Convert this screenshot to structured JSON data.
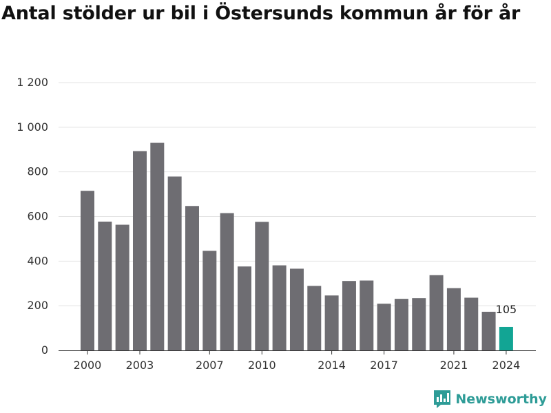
{
  "title": "Antal stölder ur bil i Östersunds kommun år för år",
  "brand": {
    "name": "Newsworthy",
    "icon": "newsworthy-logo-icon",
    "color": "#2e9c97"
  },
  "chart_data": {
    "type": "bar",
    "title": "Antal stölder ur bil i Östersunds kommun år för år",
    "categories": [
      "2000",
      "2001",
      "2002",
      "2003",
      "2004",
      "2005",
      "2006",
      "2007",
      "2008",
      "2009",
      "2010",
      "2011",
      "2012",
      "2013",
      "2014",
      "2015",
      "2016",
      "2017",
      "2018",
      "2019",
      "2020",
      "2021",
      "2022",
      "2023",
      "2024"
    ],
    "values": [
      715,
      577,
      563,
      893,
      930,
      779,
      647,
      446,
      615,
      376,
      576,
      381,
      366,
      289,
      246,
      311,
      313,
      209,
      231,
      234,
      337,
      279,
      236,
      173,
      105
    ],
    "xticks": [
      "2000",
      "2003",
      "2007",
      "2010",
      "2014",
      "2017",
      "2021",
      "2024"
    ],
    "yticks": [
      0,
      200,
      400,
      600,
      800,
      1000,
      1200
    ],
    "ytick_labels": [
      "0",
      "200",
      "400",
      "600",
      "800",
      "1 000",
      "1 200"
    ],
    "ylim": [
      0,
      1200
    ],
    "bar_color": "#6e6d72",
    "highlight_color": "#12a594",
    "highlight_category": "2024",
    "data_labels": [
      {
        "category": "2024",
        "text": "105"
      }
    ],
    "grid": true,
    "xlabel": "",
    "ylabel": ""
  }
}
